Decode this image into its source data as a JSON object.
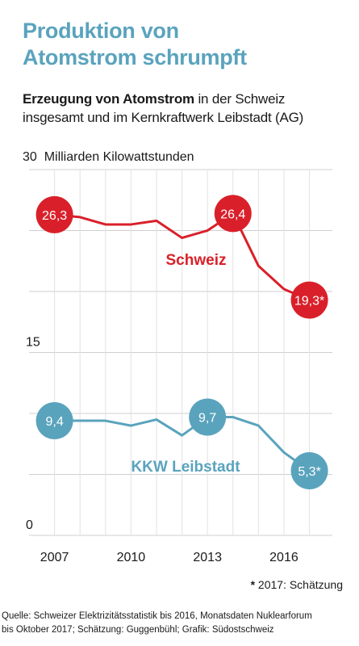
{
  "header": {
    "title_line1": "Produktion von",
    "title_line2": "Atomstrom schrumpft",
    "subtitle_bold": "Erzeugung von Atomstrom",
    "subtitle_rest1": " in der Schweiz",
    "subtitle_line2": "insgesamt und im Kernkraftwerk Leibstadt (AG)",
    "unit_label": "Milliarden Kilowattstunden"
  },
  "chart_data": {
    "type": "line",
    "x": [
      2007,
      2008,
      2009,
      2010,
      2011,
      2012,
      2013,
      2014,
      2015,
      2016,
      2017
    ],
    "series": [
      {
        "name": "Schweiz",
        "color": "#d9202a",
        "values": [
          26.3,
          26.1,
          25.5,
          25.5,
          25.8,
          24.4,
          25.0,
          26.4,
          22.1,
          20.2,
          19.3
        ],
        "value_labels": [
          {
            "x": 2007,
            "text": "26,3"
          },
          {
            "x": 2014,
            "text": "26,4"
          },
          {
            "x": 2017,
            "text": "19,3*"
          }
        ]
      },
      {
        "name": "KKW Leibstadt",
        "color": "#5aa3bd",
        "values": [
          9.4,
          9.4,
          9.4,
          9.0,
          9.5,
          8.2,
          9.7,
          9.7,
          9.0,
          6.8,
          5.3
        ],
        "value_labels": [
          {
            "x": 2007,
            "text": "9,4"
          },
          {
            "x": 2013,
            "text": "9,7"
          },
          {
            "x": 2017,
            "text": "5,3*"
          }
        ]
      }
    ],
    "y_ticks": [
      {
        "value": 30,
        "label": "30"
      },
      {
        "value": 15,
        "label": "15"
      },
      {
        "value": 0,
        "label": "0"
      }
    ],
    "x_ticks": [
      {
        "value": 2007,
        "label": "2007"
      },
      {
        "value": 2010,
        "label": "2010"
      },
      {
        "value": 2013,
        "label": "2013"
      },
      {
        "value": 2016,
        "label": "2016"
      }
    ],
    "ylim": [
      0,
      30
    ],
    "xlim": [
      2006,
      2017.9
    ],
    "grid": true
  },
  "footnote": {
    "star": "*",
    "text": " 2017: Schätzung"
  },
  "source": {
    "line1": "Quelle: Schweizer Elektrizitätsstatistik bis 2016, Monatsdaten Nuklearforum",
    "line2": "bis Oktober 2017; Schätzung: Guggenbühl; Grafik: Südostschweiz"
  }
}
